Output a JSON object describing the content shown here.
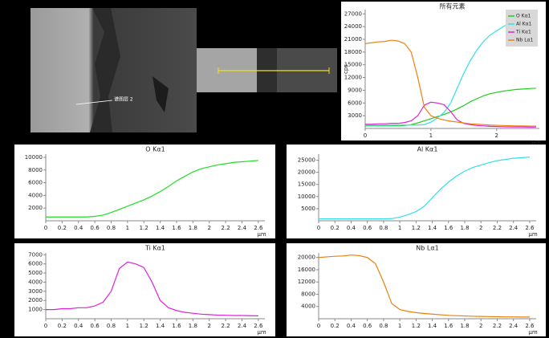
{
  "images": {
    "label": "谱图层 2"
  },
  "chart_data": [
    {
      "type": "line",
      "title": "所有元素",
      "y_label": "cps",
      "x_unit": "μm",
      "legend": "upper right",
      "x": [
        0,
        0.1,
        0.2,
        0.3,
        0.4,
        0.5,
        0.6,
        0.7,
        0.8,
        0.9,
        1,
        1.1,
        1.2,
        1.3,
        1.4,
        1.5,
        1.6,
        1.7,
        1.8,
        1.9,
        2,
        2.1,
        2.2,
        2.3,
        2.4,
        2.5,
        2.6
      ],
      "xlim": [
        0,
        2.65
      ],
      "xticks": [
        0,
        1,
        2
      ],
      "ylim": [
        0,
        28000
      ],
      "yticks": [
        3000,
        6000,
        9000,
        12000,
        15000,
        18000,
        21000,
        24000,
        27000
      ],
      "series": [
        {
          "name": "O Kα1",
          "color": "#22cc22",
          "values": [
            600,
            600,
            600,
            600,
            600,
            600,
            700,
            900,
            1300,
            1800,
            2300,
            2800,
            3300,
            3900,
            4600,
            5400,
            6300,
            7000,
            7700,
            8200,
            8500,
            8800,
            9000,
            9200,
            9300,
            9400,
            9500
          ]
        },
        {
          "name": "Al Kα1",
          "color": "#33e0e8",
          "values": [
            800,
            800,
            800,
            800,
            800,
            800,
            800,
            800,
            800,
            900,
            1500,
            2500,
            3800,
            6000,
            9500,
            13000,
            16000,
            18500,
            20500,
            22000,
            23000,
            24000,
            24800,
            25300,
            25800,
            26000,
            26300
          ]
        },
        {
          "name": "Ti Kα1",
          "color": "#dd22dd",
          "values": [
            1000,
            1000,
            1100,
            1100,
            1200,
            1200,
            1400,
            1800,
            3000,
            5500,
            6200,
            6000,
            5600,
            4000,
            2000,
            1200,
            900,
            700,
            600,
            500,
            450,
            400,
            380,
            350,
            350,
            330,
            320
          ]
        },
        {
          "name": "Nb Lα1",
          "color": "#f08010",
          "values": [
            20000,
            20200,
            20400,
            20500,
            20800,
            20600,
            20000,
            18000,
            12000,
            5000,
            3000,
            2400,
            2000,
            1700,
            1500,
            1300,
            1100,
            1000,
            900,
            800,
            750,
            700,
            650,
            600,
            600,
            550,
            550
          ]
        }
      ]
    },
    {
      "type": "line",
      "title": "O Kα1",
      "x_unit": "μm",
      "color": "#22dd22",
      "x": [
        0,
        0.1,
        0.2,
        0.3,
        0.4,
        0.5,
        0.6,
        0.7,
        0.8,
        0.9,
        1,
        1.1,
        1.2,
        1.3,
        1.4,
        1.5,
        1.6,
        1.7,
        1.8,
        1.9,
        2,
        2.1,
        2.2,
        2.3,
        2.4,
        2.5,
        2.6
      ],
      "values": [
        600,
        600,
        600,
        600,
        600,
        600,
        700,
        900,
        1300,
        1800,
        2300,
        2800,
        3300,
        3900,
        4600,
        5400,
        6300,
        7000,
        7700,
        8200,
        8500,
        8800,
        9000,
        9200,
        9300,
        9400,
        9500
      ],
      "xlim": [
        0,
        2.68
      ],
      "xticks": [
        0,
        0.2,
        0.4,
        0.6,
        0.8,
        1,
        1.2,
        1.4,
        1.6,
        1.8,
        2,
        2.2,
        2.4,
        2.6
      ],
      "ylim": [
        0,
        10500
      ],
      "yticks": [
        2000,
        4000,
        6000,
        8000,
        10000
      ]
    },
    {
      "type": "line",
      "title": "Al Kα1",
      "x_unit": "μm",
      "color": "#33e0e8",
      "x": [
        0,
        0.1,
        0.2,
        0.3,
        0.4,
        0.5,
        0.6,
        0.7,
        0.8,
        0.9,
        1,
        1.1,
        1.2,
        1.3,
        1.4,
        1.5,
        1.6,
        1.7,
        1.8,
        1.9,
        2,
        2.1,
        2.2,
        2.3,
        2.4,
        2.5,
        2.6
      ],
      "values": [
        800,
        800,
        800,
        800,
        800,
        800,
        800,
        800,
        800,
        900,
        1500,
        2500,
        3800,
        6000,
        9500,
        13000,
        16000,
        18500,
        20500,
        22000,
        23000,
        24000,
        24800,
        25300,
        25800,
        26000,
        26300
      ],
      "xlim": [
        0,
        2.68
      ],
      "xticks": [
        0,
        0.2,
        0.4,
        0.6,
        0.8,
        1,
        1.2,
        1.4,
        1.6,
        1.8,
        2,
        2.2,
        2.4,
        2.6
      ],
      "ylim": [
        0,
        27500
      ],
      "yticks": [
        5000,
        10000,
        15000,
        20000,
        25000
      ]
    },
    {
      "type": "line",
      "title": "Ti Kα1",
      "x_unit": "μm",
      "color": "#dd22dd",
      "x": [
        0,
        0.1,
        0.2,
        0.3,
        0.4,
        0.5,
        0.6,
        0.7,
        0.8,
        0.9,
        1,
        1.1,
        1.2,
        1.3,
        1.4,
        1.5,
        1.6,
        1.7,
        1.8,
        1.9,
        2,
        2.1,
        2.2,
        2.3,
        2.4,
        2.5,
        2.6
      ],
      "values": [
        1000,
        1000,
        1100,
        1100,
        1200,
        1200,
        1400,
        1800,
        3000,
        5500,
        6200,
        6000,
        5600,
        4000,
        2000,
        1200,
        900,
        700,
        600,
        500,
        450,
        400,
        380,
        350,
        350,
        330,
        320
      ],
      "xlim": [
        0,
        2.68
      ],
      "xticks": [
        0,
        0.2,
        0.4,
        0.6,
        0.8,
        1,
        1.2,
        1.4,
        1.6,
        1.8,
        2,
        2.2,
        2.4,
        2.6
      ],
      "ylim": [
        0,
        7200
      ],
      "yticks": [
        1000,
        2000,
        3000,
        4000,
        5000,
        6000,
        7000
      ]
    },
    {
      "type": "line",
      "title": "Nb Lα1",
      "x_unit": "μm",
      "color": "#e88010",
      "x": [
        0,
        0.1,
        0.2,
        0.3,
        0.4,
        0.5,
        0.6,
        0.7,
        0.8,
        0.9,
        1,
        1.1,
        1.2,
        1.3,
        1.4,
        1.5,
        1.6,
        1.7,
        1.8,
        1.9,
        2,
        2.1,
        2.2,
        2.3,
        2.4,
        2.5,
        2.6
      ],
      "values": [
        20000,
        20200,
        20400,
        20500,
        20800,
        20600,
        20000,
        18000,
        12000,
        5000,
        3000,
        2400,
        2000,
        1700,
        1500,
        1300,
        1100,
        1000,
        900,
        800,
        750,
        700,
        650,
        600,
        600,
        550,
        550
      ],
      "xlim": [
        0,
        2.68
      ],
      "xticks": [
        0,
        0.2,
        0.4,
        0.6,
        0.8,
        1,
        1.2,
        1.4,
        1.6,
        1.8,
        2,
        2.2,
        2.4,
        2.6
      ],
      "ylim": [
        0,
        21500
      ],
      "yticks": [
        4000,
        8000,
        12000,
        16000,
        20000
      ]
    }
  ]
}
